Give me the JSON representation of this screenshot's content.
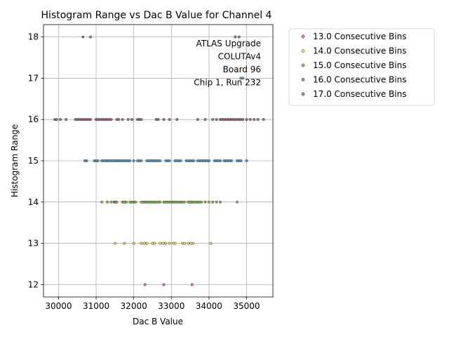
{
  "chart_data": {
    "type": "scatter",
    "title": "Histogram Range vs Dac B Value for Channel 4",
    "xlabel": "Dac B Value",
    "ylabel": "Histogram Range",
    "xlim": [
      29600,
      35700
    ],
    "ylim": [
      11.7,
      18.3
    ],
    "xticks": [
      30000,
      31000,
      32000,
      33000,
      34000,
      35000
    ],
    "yticks": [
      12,
      13,
      14,
      15,
      16,
      17,
      18
    ],
    "grid": true,
    "annotation": [
      "ATLAS Upgrade",
      "COLUTAv4",
      "Board 96",
      "Chip 1, Run 232"
    ],
    "legend_position": "outside-right",
    "series": [
      {
        "name": "13.0 Consecutive Bins",
        "color": "#e8474e",
        "points": [
          [
            32300,
            12
          ],
          [
            32800,
            12
          ],
          [
            33550,
            12
          ]
        ]
      },
      {
        "name": "14.0 Consecutive Bins",
        "color": "#f7c520",
        "points": [
          [
            31500,
            13
          ],
          [
            31750,
            13
          ],
          [
            32000,
            13
          ],
          [
            32200,
            13
          ],
          [
            32280,
            13
          ],
          [
            32350,
            13
          ],
          [
            32500,
            13
          ],
          [
            32550,
            13
          ],
          [
            32700,
            13
          ],
          [
            32780,
            13
          ],
          [
            32850,
            13
          ],
          [
            32950,
            13
          ],
          [
            33050,
            13
          ],
          [
            33100,
            13
          ],
          [
            33300,
            13
          ],
          [
            33350,
            13
          ],
          [
            33450,
            13
          ],
          [
            33520,
            13
          ],
          [
            33580,
            13
          ],
          [
            34050,
            13
          ]
        ]
      },
      {
        "name": "15.0 Consecutive Bins",
        "color": "#6aa531",
        "points": [
          [
            31150,
            14
          ],
          [
            31300,
            14
          ],
          [
            31400,
            14
          ],
          [
            31480,
            14
          ],
          [
            31500,
            14
          ],
          [
            31550,
            14
          ],
          [
            31700,
            14
          ],
          [
            31750,
            14
          ],
          [
            31800,
            14
          ],
          [
            31900,
            14
          ],
          [
            31950,
            14
          ],
          [
            32000,
            14
          ],
          [
            32050,
            14
          ],
          [
            32200,
            14
          ],
          [
            32250,
            14
          ],
          [
            32300,
            14
          ],
          [
            32350,
            14
          ],
          [
            32400,
            14
          ],
          [
            32450,
            14
          ],
          [
            32500,
            14
          ],
          [
            32550,
            14
          ],
          [
            32600,
            14
          ],
          [
            32650,
            14
          ],
          [
            32700,
            14
          ],
          [
            32800,
            14
          ],
          [
            32850,
            14
          ],
          [
            32900,
            14
          ],
          [
            32950,
            14
          ],
          [
            33000,
            14
          ],
          [
            33050,
            14
          ],
          [
            33100,
            14
          ],
          [
            33150,
            14
          ],
          [
            33200,
            14
          ],
          [
            33250,
            14
          ],
          [
            33300,
            14
          ],
          [
            33350,
            14
          ],
          [
            33450,
            14
          ],
          [
            33500,
            14
          ],
          [
            33550,
            14
          ],
          [
            33600,
            14
          ],
          [
            33650,
            14
          ],
          [
            33700,
            14
          ],
          [
            33750,
            14
          ],
          [
            33800,
            14
          ],
          [
            33900,
            14
          ],
          [
            34000,
            14
          ],
          [
            34100,
            14
          ],
          [
            34200,
            14
          ],
          [
            34300,
            14
          ],
          [
            34750,
            14
          ]
        ]
      },
      {
        "name": "16.0 Consecutive Bins",
        "color": "#3b83b8",
        "points": [
          [
            30700,
            15
          ],
          [
            30750,
            15
          ],
          [
            30950,
            15
          ],
          [
            31000,
            15
          ],
          [
            31050,
            15
          ],
          [
            31150,
            15
          ],
          [
            31200,
            15
          ],
          [
            31250,
            15
          ],
          [
            31300,
            15
          ],
          [
            31350,
            15
          ],
          [
            31400,
            15
          ],
          [
            31450,
            15
          ],
          [
            31500,
            15
          ],
          [
            31550,
            15
          ],
          [
            31600,
            15
          ],
          [
            31650,
            15
          ],
          [
            31700,
            15
          ],
          [
            31750,
            15
          ],
          [
            31800,
            15
          ],
          [
            31850,
            15
          ],
          [
            31900,
            15
          ],
          [
            32000,
            15
          ],
          [
            32100,
            15
          ],
          [
            32150,
            15
          ],
          [
            32200,
            15
          ],
          [
            32350,
            15
          ],
          [
            32400,
            15
          ],
          [
            32450,
            15
          ],
          [
            32500,
            15
          ],
          [
            32550,
            15
          ],
          [
            32600,
            15
          ],
          [
            32650,
            15
          ],
          [
            32700,
            15
          ],
          [
            32850,
            15
          ],
          [
            32900,
            15
          ],
          [
            32950,
            15
          ],
          [
            33100,
            15
          ],
          [
            33150,
            15
          ],
          [
            33200,
            15
          ],
          [
            33250,
            15
          ],
          [
            33400,
            15
          ],
          [
            33450,
            15
          ],
          [
            33500,
            15
          ],
          [
            33550,
            15
          ],
          [
            33600,
            15
          ],
          [
            33700,
            15
          ],
          [
            33750,
            15
          ],
          [
            33800,
            15
          ],
          [
            33850,
            15
          ],
          [
            33900,
            15
          ],
          [
            33950,
            15
          ],
          [
            34000,
            15
          ],
          [
            34150,
            15
          ],
          [
            34200,
            15
          ],
          [
            34250,
            15
          ],
          [
            34300,
            15
          ],
          [
            34400,
            15
          ],
          [
            34450,
            15
          ],
          [
            34500,
            15
          ],
          [
            34550,
            15
          ],
          [
            34600,
            15
          ],
          [
            34750,
            15
          ],
          [
            34800,
            15
          ],
          [
            34850,
            15
          ],
          [
            35000,
            15
          ],
          [
            34850,
            17
          ],
          [
            34900,
            17
          ]
        ]
      },
      {
        "name": "17.0 Consecutive Bins",
        "color": "#8c4f6e",
        "points": [
          [
            29900,
            16
          ],
          [
            29950,
            16
          ],
          [
            30050,
            16
          ],
          [
            30200,
            16
          ],
          [
            30450,
            16
          ],
          [
            30500,
            16
          ],
          [
            30550,
            16
          ],
          [
            30600,
            16
          ],
          [
            30650,
            16
          ],
          [
            30700,
            16
          ],
          [
            30750,
            16
          ],
          [
            30800,
            16
          ],
          [
            30850,
            16
          ],
          [
            31000,
            16
          ],
          [
            31050,
            16
          ],
          [
            31100,
            16
          ],
          [
            31150,
            16
          ],
          [
            31200,
            16
          ],
          [
            31250,
            16
          ],
          [
            31300,
            16
          ],
          [
            31350,
            16
          ],
          [
            31400,
            16
          ],
          [
            31550,
            16
          ],
          [
            31600,
            16
          ],
          [
            31700,
            16
          ],
          [
            31850,
            16
          ],
          [
            31950,
            16
          ],
          [
            32100,
            16
          ],
          [
            32150,
            16
          ],
          [
            32200,
            16
          ],
          [
            32600,
            16
          ],
          [
            32650,
            16
          ],
          [
            32800,
            16
          ],
          [
            32950,
            16
          ],
          [
            33150,
            16
          ],
          [
            33700,
            16
          ],
          [
            33900,
            16
          ],
          [
            34100,
            16
          ],
          [
            34200,
            16
          ],
          [
            34300,
            16
          ],
          [
            34350,
            16
          ],
          [
            34400,
            16
          ],
          [
            34450,
            16
          ],
          [
            34500,
            16
          ],
          [
            34550,
            16
          ],
          [
            34600,
            16
          ],
          [
            34650,
            16
          ],
          [
            34700,
            16
          ],
          [
            34750,
            16
          ],
          [
            34800,
            16
          ],
          [
            34850,
            16
          ],
          [
            34900,
            16
          ],
          [
            35000,
            16
          ],
          [
            35100,
            16
          ],
          [
            35200,
            16
          ],
          [
            35300,
            16
          ],
          [
            35450,
            16
          ],
          [
            30650,
            18
          ],
          [
            30850,
            18
          ],
          [
            34700,
            18
          ],
          [
            34800,
            18
          ]
        ]
      }
    ]
  }
}
